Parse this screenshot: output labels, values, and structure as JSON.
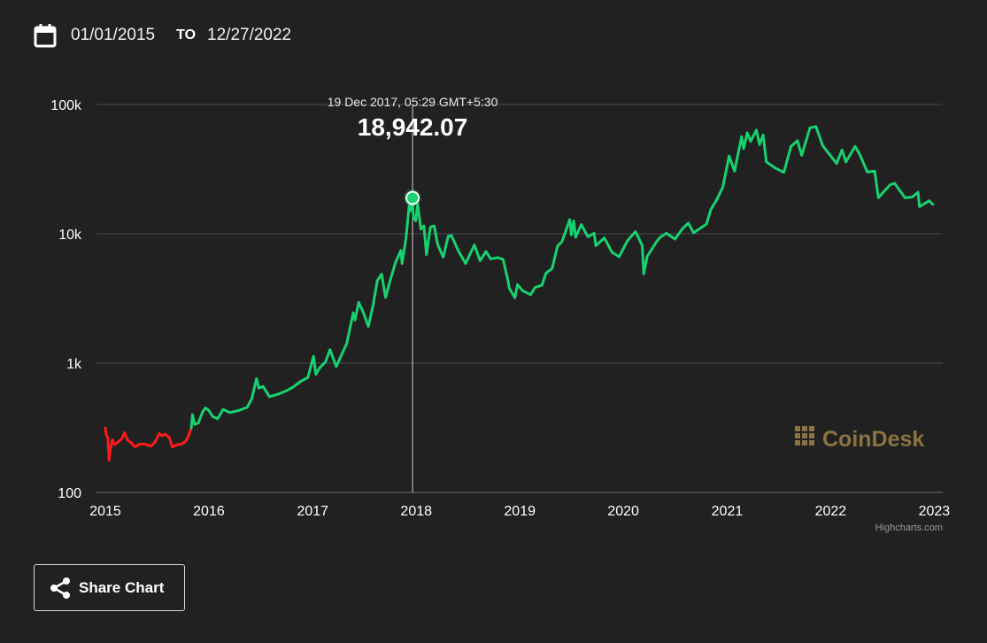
{
  "date_range": {
    "from": "01/01/2015",
    "to_label": "TO",
    "to": "12/27/2022",
    "icon": "calendar-icon"
  },
  "tooltip": {
    "datetime": "19 Dec 2017, 05:29 GMT+5:30",
    "value": "18,942.07"
  },
  "watermark": {
    "text": "CoinDesk",
    "color": "#8b7340"
  },
  "credits": "Highcharts.com",
  "share_button": {
    "label": "Share Chart",
    "icon": "share-icon"
  },
  "colors": {
    "up": "#18d26f",
    "down": "#ff1a1a",
    "background": "#212121",
    "grid": "#4a4a4a"
  },
  "chart_data": {
    "type": "line",
    "y_scale": "log",
    "ylim": [
      100,
      100000
    ],
    "xlim": [
      "2015-01-01",
      "2023-01-31"
    ],
    "yticks": [
      {
        "value": 100,
        "label": "100"
      },
      {
        "value": 1000,
        "label": "1k"
      },
      {
        "value": 10000,
        "label": "10k"
      },
      {
        "value": 100000,
        "label": "100k"
      }
    ],
    "xticks": [
      {
        "date": "2015-01-01",
        "label": "2015"
      },
      {
        "date": "2016-01-01",
        "label": "2016"
      },
      {
        "date": "2017-01-01",
        "label": "2017"
      },
      {
        "date": "2018-01-01",
        "label": "2018"
      },
      {
        "date": "2019-01-01",
        "label": "2019"
      },
      {
        "date": "2020-01-01",
        "label": "2020"
      },
      {
        "date": "2021-01-01",
        "label": "2021"
      },
      {
        "date": "2022-01-01",
        "label": "2022"
      },
      {
        "date": "2023-01-01",
        "label": "2023"
      }
    ],
    "grid": true,
    "highlight": {
      "date": "2017-12-19",
      "value": 18942.07
    },
    "series": [
      {
        "color": "#ff1a1a",
        "points": [
          [
            "2015-01-01",
            315
          ],
          [
            "2015-01-05",
            275
          ],
          [
            "2015-01-10",
            265
          ],
          [
            "2015-01-14",
            178
          ],
          [
            "2015-01-18",
            210
          ],
          [
            "2015-01-26",
            255
          ],
          [
            "2015-02-02",
            235
          ],
          [
            "2015-02-15",
            245
          ],
          [
            "2015-03-01",
            262
          ],
          [
            "2015-03-10",
            290
          ],
          [
            "2015-03-20",
            255
          ],
          [
            "2015-04-01",
            244
          ],
          [
            "2015-04-15",
            225
          ],
          [
            "2015-05-01",
            236
          ],
          [
            "2015-05-20",
            237
          ],
          [
            "2015-06-10",
            228
          ],
          [
            "2015-06-25",
            244
          ],
          [
            "2015-07-10",
            285
          ],
          [
            "2015-07-20",
            275
          ],
          [
            "2015-08-01",
            282
          ],
          [
            "2015-08-15",
            265
          ],
          [
            "2015-08-25",
            225
          ],
          [
            "2015-09-10",
            234
          ],
          [
            "2015-09-25",
            236
          ],
          [
            "2015-10-10",
            247
          ],
          [
            "2015-10-20",
            270
          ],
          [
            "2015-10-31",
            315
          ]
        ]
      },
      {
        "color": "#18d26f",
        "points": [
          [
            "2015-10-31",
            315
          ],
          [
            "2015-11-04",
            400
          ],
          [
            "2015-11-12",
            335
          ],
          [
            "2015-11-25",
            345
          ],
          [
            "2015-12-10",
            420
          ],
          [
            "2015-12-20",
            450
          ],
          [
            "2016-01-01",
            430
          ],
          [
            "2016-01-15",
            385
          ],
          [
            "2016-02-01",
            372
          ],
          [
            "2016-02-20",
            438
          ],
          [
            "2016-03-15",
            415
          ],
          [
            "2016-04-15",
            430
          ],
          [
            "2016-05-15",
            455
          ],
          [
            "2016-05-31",
            530
          ],
          [
            "2016-06-17",
            760
          ],
          [
            "2016-06-25",
            640
          ],
          [
            "2016-07-10",
            660
          ],
          [
            "2016-08-02",
            550
          ],
          [
            "2016-09-01",
            575
          ],
          [
            "2016-10-01",
            612
          ],
          [
            "2016-10-25",
            655
          ],
          [
            "2016-11-15",
            712
          ],
          [
            "2016-12-15",
            775
          ],
          [
            "2017-01-04",
            1130
          ],
          [
            "2017-01-12",
            820
          ],
          [
            "2017-01-25",
            915
          ],
          [
            "2017-02-15",
            1020
          ],
          [
            "2017-03-03",
            1270
          ],
          [
            "2017-03-25",
            940
          ],
          [
            "2017-04-15",
            1190
          ],
          [
            "2017-05-01",
            1420
          ],
          [
            "2017-05-24",
            2450
          ],
          [
            "2017-05-30",
            2150
          ],
          [
            "2017-06-12",
            2950
          ],
          [
            "2017-06-28",
            2480
          ],
          [
            "2017-07-16",
            1920
          ],
          [
            "2017-08-01",
            2750
          ],
          [
            "2017-08-17",
            4350
          ],
          [
            "2017-09-01",
            4880
          ],
          [
            "2017-09-15",
            3220
          ],
          [
            "2017-10-01",
            4350
          ],
          [
            "2017-10-20",
            6000
          ],
          [
            "2017-11-08",
            7450
          ],
          [
            "2017-11-12",
            5900
          ],
          [
            "2017-11-26",
            9300
          ],
          [
            "2017-12-07",
            16500
          ],
          [
            "2017-12-11",
            15000
          ],
          [
            "2017-12-19",
            18942.07
          ],
          [
            "2017-12-22",
            13500
          ],
          [
            "2017-12-30",
            12600
          ],
          [
            "2018-01-06",
            17000
          ],
          [
            "2018-01-17",
            10900
          ],
          [
            "2018-01-28",
            11500
          ],
          [
            "2018-02-06",
            6900
          ],
          [
            "2018-02-20",
            11300
          ],
          [
            "2018-03-05",
            11500
          ],
          [
            "2018-03-18",
            8200
          ],
          [
            "2018-04-06",
            6600
          ],
          [
            "2018-04-24",
            9600
          ],
          [
            "2018-05-05",
            9700
          ],
          [
            "2018-05-29",
            7400
          ],
          [
            "2018-06-24",
            5900
          ],
          [
            "2018-07-25",
            8200
          ],
          [
            "2018-08-14",
            6200
          ],
          [
            "2018-09-04",
            7300
          ],
          [
            "2018-09-20",
            6400
          ],
          [
            "2018-10-15",
            6550
          ],
          [
            "2018-11-03",
            6350
          ],
          [
            "2018-11-20",
            4400
          ],
          [
            "2018-11-25",
            3800
          ],
          [
            "2018-12-15",
            3200
          ],
          [
            "2018-12-24",
            4050
          ],
          [
            "2019-01-10",
            3650
          ],
          [
            "2019-02-08",
            3380
          ],
          [
            "2019-02-24",
            3850
          ],
          [
            "2019-03-20",
            4000
          ],
          [
            "2019-04-03",
            4950
          ],
          [
            "2019-04-25",
            5400
          ],
          [
            "2019-05-14",
            8050
          ],
          [
            "2019-05-30",
            8700
          ],
          [
            "2019-06-26",
            12900
          ],
          [
            "2019-07-02",
            9800
          ],
          [
            "2019-07-10",
            12600
          ],
          [
            "2019-07-17",
            9400
          ],
          [
            "2019-08-06",
            11800
          ],
          [
            "2019-08-29",
            9500
          ],
          [
            "2019-09-20",
            10100
          ],
          [
            "2019-09-26",
            8100
          ],
          [
            "2019-10-26",
            9300
          ],
          [
            "2019-11-22",
            7200
          ],
          [
            "2019-12-17",
            6650
          ],
          [
            "2020-01-15",
            8800
          ],
          [
            "2020-02-13",
            10400
          ],
          [
            "2020-03-08",
            8100
          ],
          [
            "2020-03-13",
            4900
          ],
          [
            "2020-03-25",
            6700
          ],
          [
            "2020-04-29",
            8800
          ],
          [
            "2020-05-10",
            9400
          ],
          [
            "2020-06-01",
            10100
          ],
          [
            "2020-07-01",
            9100
          ],
          [
            "2020-07-28",
            11000
          ],
          [
            "2020-08-17",
            12100
          ],
          [
            "2020-09-05",
            10200
          ],
          [
            "2020-10-20",
            11900
          ],
          [
            "2020-11-05",
            15500
          ],
          [
            "2020-11-25",
            18300
          ],
          [
            "2020-12-17",
            23000
          ],
          [
            "2021-01-08",
            40000
          ],
          [
            "2021-01-27",
            30500
          ],
          [
            "2021-02-21",
            56500
          ],
          [
            "2021-02-28",
            45500
          ],
          [
            "2021-03-13",
            60500
          ],
          [
            "2021-03-25",
            52000
          ],
          [
            "2021-04-14",
            63500
          ],
          [
            "2021-04-25",
            49000
          ],
          [
            "2021-05-08",
            58200
          ],
          [
            "2021-05-19",
            36000
          ],
          [
            "2021-06-22",
            32000
          ],
          [
            "2021-07-20",
            29900
          ],
          [
            "2021-08-14",
            47500
          ],
          [
            "2021-09-06",
            52500
          ],
          [
            "2021-09-21",
            40500
          ],
          [
            "2021-10-20",
            66000
          ],
          [
            "2021-11-10",
            67500
          ],
          [
            "2021-12-04",
            48000
          ],
          [
            "2022-01-22",
            35000
          ],
          [
            "2022-02-10",
            44500
          ],
          [
            "2022-02-24",
            36000
          ],
          [
            "2022-03-28",
            47500
          ],
          [
            "2022-04-15",
            40500
          ],
          [
            "2022-05-10",
            30000
          ],
          [
            "2022-06-05",
            30500
          ],
          [
            "2022-06-18",
            19000
          ],
          [
            "2022-07-30",
            24000
          ],
          [
            "2022-08-14",
            24600
          ],
          [
            "2022-09-20",
            19000
          ],
          [
            "2022-10-15",
            19200
          ],
          [
            "2022-11-05",
            21000
          ],
          [
            "2022-11-10",
            16200
          ],
          [
            "2022-12-14",
            18000
          ],
          [
            "2022-12-27",
            16900
          ]
        ]
      }
    ]
  }
}
